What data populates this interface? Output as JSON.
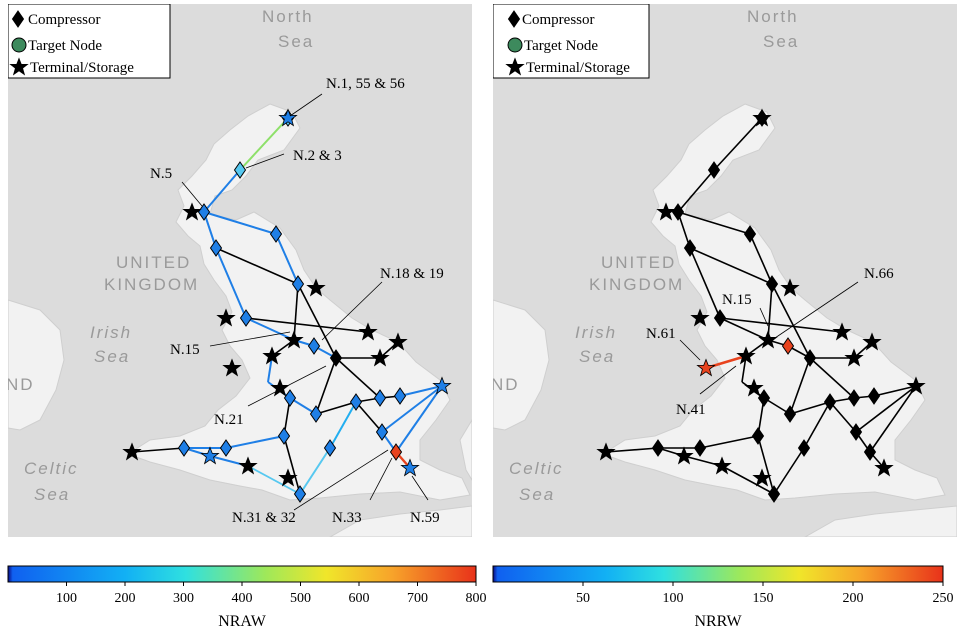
{
  "legend": {
    "compressor": "Compressor",
    "target_node": "Target Node",
    "terminal_storage": "Terminal/Storage"
  },
  "basemap_labels": {
    "north_sea_1": "North",
    "north_sea_2": "Sea",
    "uk_1": "UNITED",
    "uk_2": "KINGDOM",
    "irish_1": "Irish",
    "irish_2": "Sea",
    "celtic_1": "Celtic",
    "celtic_2": "Sea",
    "ireland_fragment": "ND"
  },
  "left_panel": {
    "annotations": [
      "N.1, 55 & 56",
      "N.2 & 3",
      "N.5",
      "N.18 & 19",
      "N.15",
      "N.21",
      "N.31 & 32",
      "N.33",
      "N.59"
    ],
    "colorbar": {
      "title": "NRAW",
      "ticks": [
        "100",
        "200",
        "300",
        "400",
        "500",
        "600",
        "700",
        "800"
      ],
      "range": [
        0,
        800
      ]
    }
  },
  "right_panel": {
    "annotations": [
      "N.66",
      "N.15",
      "N.61",
      "N.41"
    ],
    "colorbar": {
      "title": "NRRW",
      "ticks": [
        "50",
        "100",
        "150",
        "200",
        "250"
      ],
      "range": [
        0,
        250
      ]
    }
  },
  "colors": {
    "sea": "#dcdcdc",
    "land": "#f4f4f4",
    "high": "#e8431e",
    "low": "#1f7fe6",
    "mid": "#8ee06a"
  }
}
